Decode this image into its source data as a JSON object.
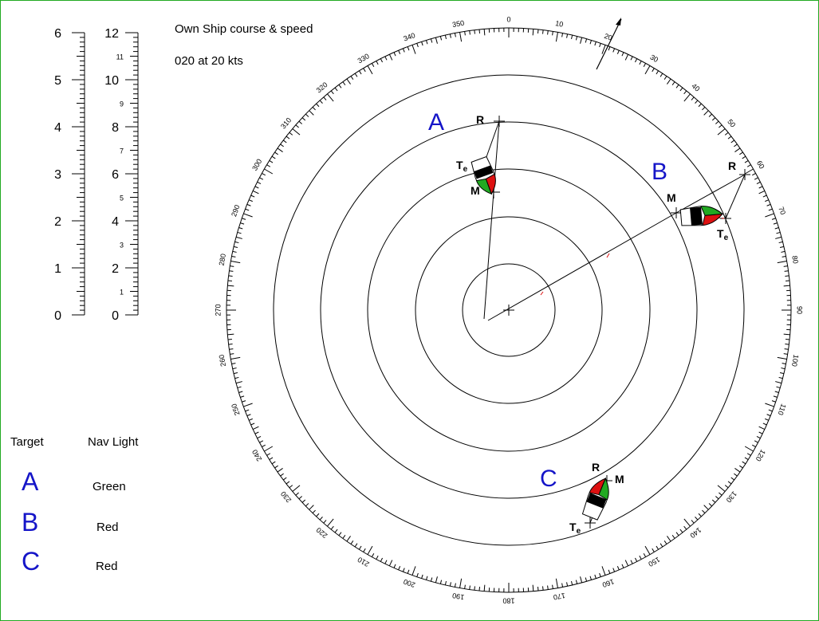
{
  "header": {
    "line1": "Own Ship course & speed",
    "line2": "020 at 20 kts"
  },
  "scales": {
    "left_major_labels": [
      "0",
      "1",
      "2",
      "3",
      "4",
      "5",
      "6"
    ],
    "right_major_labels": [
      "0",
      "2",
      "4",
      "6",
      "8",
      "10",
      "12"
    ],
    "right_minor_labels": [
      "1",
      "3",
      "5",
      "7",
      "9",
      "11"
    ]
  },
  "legend": {
    "target_header": "Target",
    "navlight_header": "Nav Light",
    "rows": [
      {
        "target": "A",
        "light": "Green"
      },
      {
        "target": "B",
        "light": "Red"
      },
      {
        "target": "C",
        "light": "Red"
      }
    ]
  },
  "plot": {
    "bearing_labels": [
      "0",
      "10",
      "20",
      "30",
      "40",
      "50",
      "60",
      "70",
      "80",
      "90",
      "100",
      "110",
      "120",
      "130",
      "140",
      "150",
      "160",
      "170",
      "180",
      "190",
      "200",
      "210",
      "220",
      "230",
      "240",
      "250",
      "260",
      "270",
      "280",
      "290",
      "300",
      "310",
      "320",
      "330",
      "340",
      "350"
    ],
    "targets": [
      {
        "letter": "A",
        "r_label": "R",
        "te_label": "T",
        "te_sub": "e",
        "m_label": "M"
      },
      {
        "letter": "B",
        "r_label": "R",
        "te_label": "T",
        "te_sub": "e",
        "m_label": "M"
      },
      {
        "letter": "C",
        "r_label": "R",
        "te_label": "T",
        "te_sub": "e",
        "m_label": "M"
      }
    ]
  },
  "colors": {
    "frame": "#22aa22",
    "letter_blue": "#1515c8",
    "starboard_green": "#22aa22",
    "port_red": "#dd1111",
    "hull_black": "#000000"
  }
}
